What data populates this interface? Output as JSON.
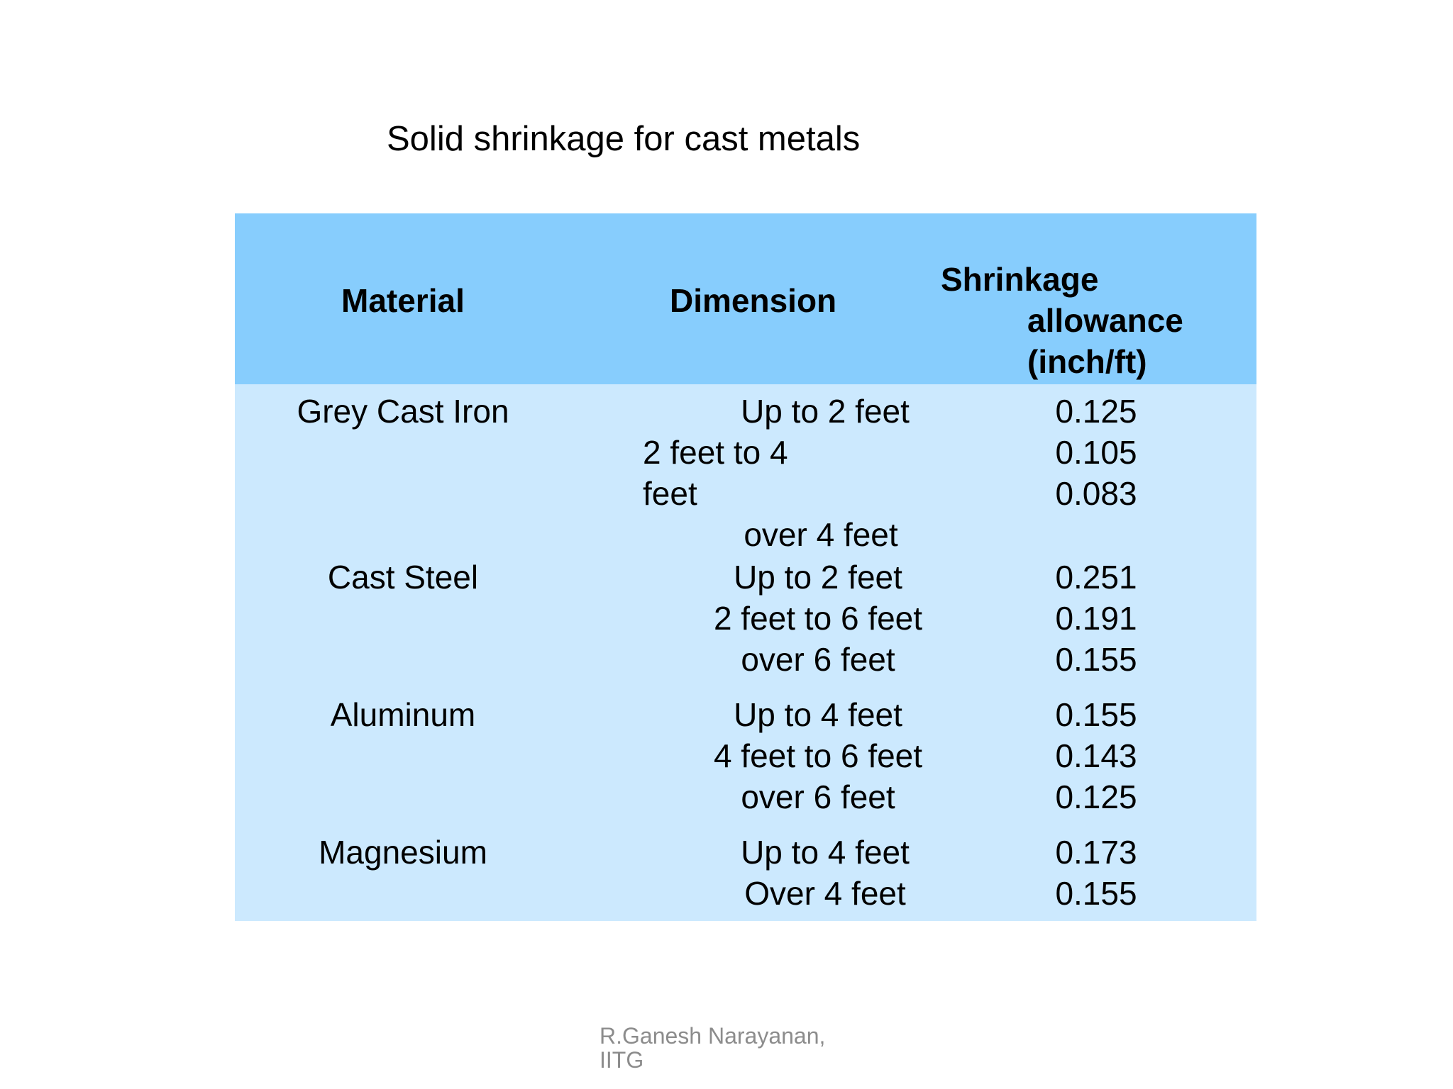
{
  "title": "Solid shrinkage for cast metals",
  "table": {
    "headers": {
      "material": "Material",
      "dimension": "Dimension",
      "shrinkage_line1": "Shrinkage",
      "shrinkage_line2": "allowance",
      "shrinkage_line3": "(inch/ft)"
    },
    "groups": [
      {
        "material": "Grey Cast Iron",
        "dimensions": [
          "Up to 2 feet",
          "2 feet to 4",
          "feet",
          "over 4 feet"
        ],
        "values": [
          "0.125",
          "0.105",
          "0.083"
        ]
      },
      {
        "material": "Cast Steel",
        "dimensions": [
          "Up to 2 feet",
          "2 feet to 6 feet",
          "over 6 feet"
        ],
        "values": [
          "0.251",
          "0.191",
          "0.155"
        ]
      },
      {
        "material": "Aluminum",
        "dimensions": [
          "Up to 4 feet",
          "4 feet to 6 feet",
          "over 6 feet"
        ],
        "values": [
          "0.155",
          "0.143",
          "0.125"
        ]
      },
      {
        "material": "Magnesium",
        "dimensions": [
          "Up to 4 feet",
          "Over 4 feet"
        ],
        "values": [
          "0.173",
          "0.155"
        ]
      }
    ]
  },
  "footer": {
    "line1": "R.Ganesh Narayanan,",
    "line2": "IITG"
  }
}
